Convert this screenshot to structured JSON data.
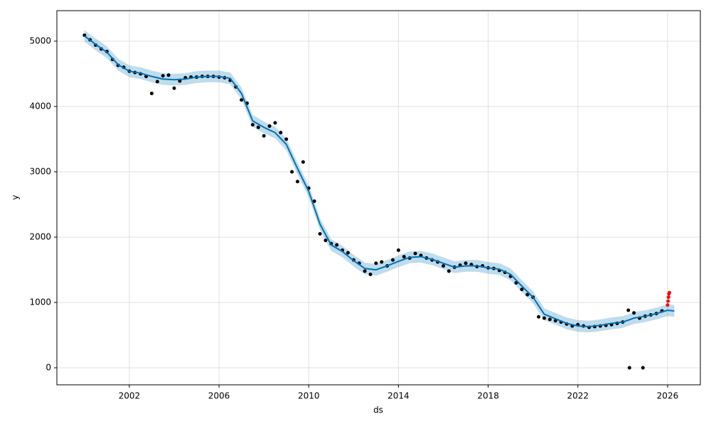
{
  "chart_data": {
    "type": "forecast",
    "x_label": "ds",
    "y_label": "y",
    "xlim": [
      1998.77,
      2027.46
    ],
    "ylim": [
      -261,
      5467
    ],
    "xticks": [
      2002,
      2006,
      2010,
      2014,
      2018,
      2022,
      2026
    ],
    "yticks": [
      0,
      1000,
      2000,
      3000,
      4000,
      5000
    ],
    "grid": true,
    "observed": {
      "color": "#000000",
      "x": [
        2000.0,
        2000.25,
        2000.5,
        2000.75,
        2001.0,
        2001.25,
        2001.5,
        2001.75,
        2002.0,
        2002.25,
        2002.5,
        2002.75,
        2003.0,
        2003.25,
        2003.5,
        2003.75,
        2004.0,
        2004.25,
        2004.5,
        2004.75,
        2005.0,
        2005.25,
        2005.5,
        2005.75,
        2006.0,
        2006.25,
        2006.5,
        2006.75,
        2007.0,
        2007.25,
        2007.5,
        2007.75,
        2008.0,
        2008.25,
        2008.5,
        2008.75,
        2009.0,
        2009.25,
        2009.5,
        2009.75,
        2010.0,
        2010.25,
        2010.5,
        2010.75,
        2011.0,
        2011.25,
        2011.5,
        2011.75,
        2012.0,
        2012.25,
        2012.5,
        2012.75,
        2013.0,
        2013.25,
        2013.5,
        2013.75,
        2014.0,
        2014.25,
        2014.5,
        2014.75,
        2015.0,
        2015.25,
        2015.5,
        2015.75,
        2016.0,
        2016.25,
        2016.5,
        2016.75,
        2017.0,
        2017.25,
        2017.5,
        2017.75,
        2018.0,
        2018.25,
        2018.5,
        2018.75,
        2019.0,
        2019.25,
        2019.5,
        2019.75,
        2020.0,
        2020.25,
        2020.5,
        2020.75,
        2021.0,
        2021.25,
        2021.5,
        2021.75,
        2022.0,
        2022.25,
        2022.5,
        2022.75,
        2023.0,
        2023.25,
        2023.5,
        2023.75,
        2024.0,
        2024.25,
        2024.5,
        2024.75,
        2025.0,
        2025.25,
        2025.5,
        2025.75,
        2024.3,
        2024.9
      ],
      "y": [
        5090,
        5020,
        4940,
        4880,
        4840,
        4720,
        4630,
        4600,
        4540,
        4520,
        4500,
        4460,
        4200,
        4380,
        4470,
        4480,
        4280,
        4390,
        4440,
        4450,
        4450,
        4460,
        4460,
        4460,
        4450,
        4440,
        4400,
        4300,
        4100,
        4050,
        3720,
        3680,
        3550,
        3700,
        3750,
        3600,
        3500,
        3000,
        2850,
        3150,
        2750,
        2550,
        2050,
        1950,
        1900,
        1880,
        1800,
        1760,
        1650,
        1600,
        1480,
        1430,
        1600,
        1620,
        1560,
        1650,
        1800,
        1700,
        1680,
        1750,
        1720,
        1680,
        1650,
        1620,
        1560,
        1480,
        1540,
        1570,
        1600,
        1580,
        1550,
        1560,
        1530,
        1520,
        1490,
        1460,
        1400,
        1300,
        1200,
        1120,
        1080,
        780,
        760,
        740,
        720,
        700,
        670,
        640,
        660,
        640,
        620,
        630,
        640,
        650,
        660,
        680,
        700,
        880,
        840,
        760,
        790,
        810,
        830,
        870,
        0,
        0
      ]
    },
    "latest": {
      "color": "#ff0000",
      "x": [
        2026.0,
        2026.02,
        2026.04,
        2026.06,
        2026.08
      ],
      "y": [
        960,
        1020,
        1080,
        1130,
        1150
      ]
    },
    "forecast": {
      "color": "#0072b2",
      "band_color": "#0072b2",
      "x": [
        2000.0,
        2000.5,
        2001.0,
        2001.5,
        2002.0,
        2002.5,
        2003.0,
        2003.5,
        2004.0,
        2004.5,
        2005.0,
        2005.5,
        2006.0,
        2006.5,
        2007.0,
        2007.5,
        2008.0,
        2008.5,
        2009.0,
        2009.5,
        2010.0,
        2010.5,
        2011.0,
        2011.5,
        2012.0,
        2012.5,
        2013.0,
        2013.5,
        2014.0,
        2014.5,
        2015.0,
        2015.5,
        2016.0,
        2016.5,
        2017.0,
        2017.5,
        2018.0,
        2018.5,
        2019.0,
        2019.5,
        2020.0,
        2020.5,
        2021.0,
        2021.5,
        2022.0,
        2022.5,
        2023.0,
        2023.5,
        2024.0,
        2024.5,
        2025.0,
        2025.5,
        2026.0,
        2026.3
      ],
      "yhat": [
        5080,
        4950,
        4830,
        4640,
        4540,
        4510,
        4460,
        4420,
        4410,
        4420,
        4450,
        4460,
        4460,
        4430,
        4200,
        3780,
        3680,
        3600,
        3420,
        3050,
        2700,
        2200,
        1880,
        1780,
        1640,
        1520,
        1500,
        1560,
        1630,
        1690,
        1700,
        1660,
        1600,
        1540,
        1560,
        1560,
        1530,
        1510,
        1430,
        1250,
        1080,
        820,
        750,
        680,
        640,
        630,
        650,
        680,
        700,
        760,
        790,
        830,
        880,
        870
      ],
      "lower": [
        4990,
        4860,
        4740,
        4550,
        4450,
        4420,
        4370,
        4330,
        4320,
        4330,
        4360,
        4370,
        4370,
        4340,
        4110,
        3690,
        3590,
        3510,
        3330,
        2960,
        2610,
        2110,
        1790,
        1690,
        1550,
        1430,
        1410,
        1470,
        1540,
        1600,
        1610,
        1570,
        1510,
        1450,
        1470,
        1470,
        1440,
        1420,
        1340,
        1160,
        990,
        730,
        660,
        590,
        550,
        540,
        560,
        590,
        610,
        670,
        700,
        740,
        790,
        780
      ],
      "upper": [
        5170,
        5040,
        4920,
        4730,
        4630,
        4600,
        4550,
        4510,
        4500,
        4510,
        4540,
        4550,
        4550,
        4520,
        4290,
        3870,
        3770,
        3690,
        3510,
        3140,
        2790,
        2290,
        1970,
        1870,
        1730,
        1610,
        1590,
        1650,
        1720,
        1780,
        1790,
        1750,
        1690,
        1630,
        1650,
        1650,
        1620,
        1600,
        1520,
        1340,
        1170,
        910,
        840,
        770,
        730,
        720,
        740,
        770,
        790,
        850,
        880,
        920,
        970,
        960
      ]
    }
  }
}
